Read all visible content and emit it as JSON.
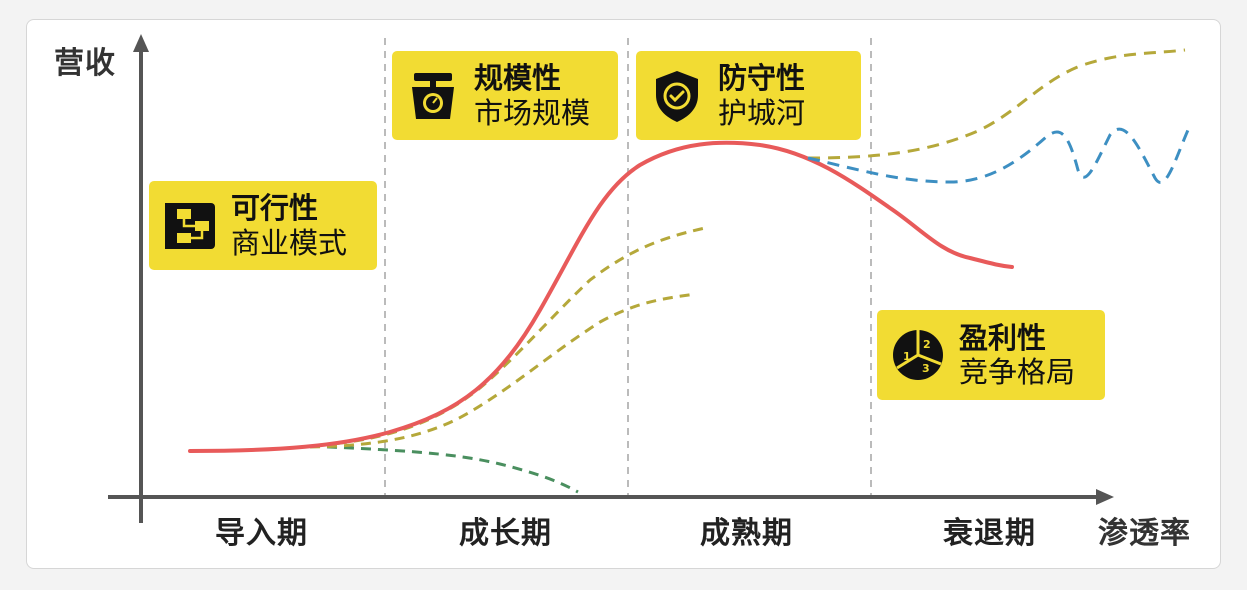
{
  "axes": {
    "y_label": "营收",
    "x_label": "渗透率"
  },
  "phases": [
    "导入期",
    "成长期",
    "成熟期",
    "衰退期"
  ],
  "badges": [
    {
      "title": "可行性",
      "subtitle": "商业模式",
      "icon": "flowchart-icon"
    },
    {
      "title": "规模性",
      "subtitle": "市场规模",
      "icon": "scale-icon"
    },
    {
      "title": "防守性",
      "subtitle": "护城河",
      "icon": "shield-check-icon"
    },
    {
      "title": "盈利性",
      "subtitle": "竞争格局",
      "icon": "pie-ranking-icon"
    }
  ],
  "colors": {
    "main_curve": "#e85a5a",
    "olive_dashed": "#b5a83a",
    "blue_dashed": "#3d8fc2",
    "green_dashed": "#4a8f5f",
    "badge_bg": "#f2dc33",
    "axis": "#555555",
    "divider": "#bbbbbb"
  }
}
